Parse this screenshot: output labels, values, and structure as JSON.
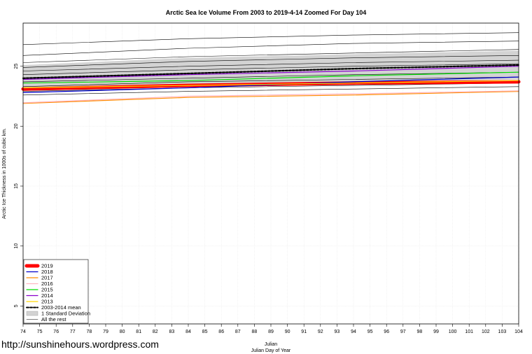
{
  "chart_data": {
    "type": "line",
    "title": "Arctic Sea Ice Volume From 2003 to 2019-4-14 Zoomed For Day 104",
    "xlabel": "Julian",
    "xlabel2": "Julian Day of Year",
    "ylabel": "Arctic Ice Thickness in 1000s of cubic km.",
    "xlim": [
      74,
      104
    ],
    "ylim": [
      3.5,
      28.6
    ],
    "x_ticks": [
      74,
      75,
      76,
      77,
      78,
      79,
      80,
      81,
      82,
      83,
      84,
      85,
      86,
      87,
      88,
      89,
      90,
      91,
      92,
      93,
      94,
      95,
      96,
      97,
      98,
      99,
      100,
      101,
      102,
      103,
      104
    ],
    "y_ticks": [
      5,
      10,
      15,
      20,
      25
    ],
    "grid": true,
    "legend_position": "bottom-left",
    "std_band": {
      "name": "1 Standard Deviation",
      "color": "#d3d3d3",
      "x": [
        74,
        84,
        94,
        104
      ],
      "upper": [
        25.1,
        25.7,
        26.0,
        26.3
      ],
      "lower": [
        23.0,
        23.3,
        23.6,
        23.9
      ]
    },
    "series": [
      {
        "name": "2019",
        "color": "#ff0000",
        "width": 5,
        "dash": "",
        "x": [
          74,
          84,
          94,
          104
        ],
        "y": [
          23.1,
          23.4,
          23.6,
          23.7
        ]
      },
      {
        "name": "2018",
        "color": "#0000cc",
        "width": 1.2,
        "dash": "",
        "x": [
          74,
          84,
          94,
          104
        ],
        "y": [
          22.8,
          23.2,
          23.7,
          24.1
        ]
      },
      {
        "name": "2017",
        "color": "#ff8c00",
        "width": 1.2,
        "dash": "",
        "x": [
          74,
          84,
          94,
          104
        ],
        "y": [
          21.9,
          22.4,
          22.6,
          22.9
        ]
      },
      {
        "name": "2016",
        "color": "#ffb6c1",
        "width": 1.2,
        "dash": "",
        "x": [
          74,
          84,
          94,
          104
        ],
        "y": [
          21.95,
          22.5,
          22.7,
          22.95
        ]
      },
      {
        "name": "2015",
        "color": "#00dd00",
        "width": 1.2,
        "dash": "",
        "x": [
          74,
          84,
          94,
          104
        ],
        "y": [
          23.6,
          23.8,
          24.2,
          24.5
        ]
      },
      {
        "name": "2014",
        "color": "#8800cc",
        "width": 1.2,
        "dash": "",
        "x": [
          74,
          84,
          94,
          104
        ],
        "y": [
          23.9,
          24.3,
          24.6,
          25.0
        ]
      },
      {
        "name": "2013",
        "color": "#ffd700",
        "width": 1.2,
        "dash": "",
        "x": [
          74,
          84,
          94,
          104
        ],
        "y": [
          23.2,
          23.4,
          23.6,
          23.8
        ]
      },
      {
        "name": "2003-2014 mean",
        "color": "#000000",
        "width": 2.2,
        "dash": "3,2",
        "x": [
          74,
          84,
          94,
          104
        ],
        "y": [
          24.0,
          24.4,
          24.8,
          25.1
        ]
      },
      {
        "name": "All the rest",
        "color": "#000000",
        "width": 0.6,
        "dash": "",
        "x": [
          74,
          84,
          94,
          104
        ],
        "y": [
          26.8,
          27.3,
          27.6,
          27.8
        ]
      },
      {
        "name": "All the rest",
        "color": "#000000",
        "width": 0.6,
        "dash": "",
        "x": [
          74,
          84,
          94,
          104
        ],
        "y": [
          25.9,
          26.5,
          26.9,
          27.1
        ]
      },
      {
        "name": "All the rest",
        "color": "#000000",
        "width": 0.6,
        "dash": "",
        "x": [
          74,
          84,
          94,
          104
        ],
        "y": [
          25.3,
          25.8,
          26.1,
          26.4
        ]
      },
      {
        "name": "All the rest",
        "color": "#000000",
        "width": 0.6,
        "dash": "",
        "x": [
          74,
          84,
          94,
          104
        ],
        "y": [
          24.9,
          25.4,
          25.7,
          25.9
        ]
      },
      {
        "name": "All the rest",
        "color": "#000000",
        "width": 0.6,
        "dash": "",
        "x": [
          74,
          84,
          94,
          104
        ],
        "y": [
          24.6,
          25.0,
          25.3,
          25.5
        ]
      },
      {
        "name": "All the rest",
        "color": "#000000",
        "width": 0.6,
        "dash": "",
        "x": [
          74,
          84,
          94,
          104
        ],
        "y": [
          24.3,
          24.7,
          25.0,
          25.2
        ]
      },
      {
        "name": "All the rest",
        "color": "#000000",
        "width": 0.6,
        "dash": "",
        "x": [
          74,
          84,
          94,
          104
        ],
        "y": [
          23.7,
          24.0,
          24.3,
          24.5
        ]
      },
      {
        "name": "All the rest",
        "color": "#000000",
        "width": 0.6,
        "dash": "",
        "x": [
          74,
          84,
          94,
          104
        ],
        "y": [
          23.3,
          23.7,
          23.9,
          24.1
        ]
      },
      {
        "name": "All the rest",
        "color": "#000000",
        "width": 0.6,
        "dash": "",
        "x": [
          74,
          84,
          94,
          104
        ],
        "y": [
          22.9,
          23.2,
          23.4,
          23.6
        ]
      },
      {
        "name": "All the rest",
        "color": "#000000",
        "width": 0.6,
        "dash": "",
        "x": [
          74,
          84,
          94,
          104
        ],
        "y": [
          22.6,
          22.9,
          23.1,
          23.3
        ]
      }
    ],
    "legend": [
      {
        "label": "2019",
        "color": "#ff0000",
        "kind": "thick"
      },
      {
        "label": "2018",
        "color": "#0000cc",
        "kind": "line"
      },
      {
        "label": "2017",
        "color": "#ff8c00",
        "kind": "line"
      },
      {
        "label": "2016",
        "color": "#ffb6c1",
        "kind": "line"
      },
      {
        "label": "2015",
        "color": "#00dd00",
        "kind": "line"
      },
      {
        "label": "2014",
        "color": "#8800cc",
        "kind": "line"
      },
      {
        "label": "2013",
        "color": "#ffd700",
        "kind": "line"
      },
      {
        "label": "2003-2014 mean",
        "color": "#000000",
        "kind": "dashed"
      },
      {
        "label": "1 Standard Deviation",
        "color": "#d3d3d3",
        "kind": "band"
      },
      {
        "label": "All the rest",
        "color": "#000000",
        "kind": "thin"
      }
    ]
  },
  "watermark": "http://sunshinehours.wordpress.com"
}
